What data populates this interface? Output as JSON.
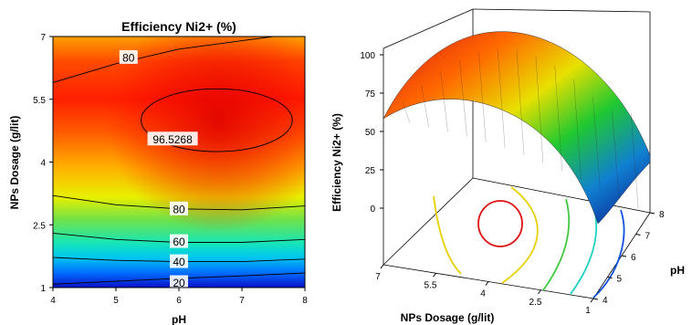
{
  "chart_data": [
    {
      "type": "contour",
      "title": "Efficiency Ni2+ (%)",
      "xlabel": "pH",
      "ylabel": "NPs Dosage (g/lit)",
      "xlim": [
        4,
        8
      ],
      "ylim": [
        1,
        7
      ],
      "x_ticks": [
        "4",
        "5",
        "6",
        "7",
        "8"
      ],
      "y_ticks": [
        "1",
        "2.5",
        "4",
        "5.5",
        "7"
      ],
      "colormap": [
        "#0a10c8",
        "#0090ff",
        "#19e6b4",
        "#6fe24a",
        "#e8f000",
        "#ffb000",
        "#ff5a00",
        "#e00000"
      ],
      "contour_levels": [
        20,
        40,
        60,
        80,
        80,
        96.5268
      ],
      "contour_labels": [
        "20",
        "40",
        "60",
        "80",
        "80",
        "96.5268"
      ],
      "optimum": {
        "pH": 6.6,
        "dosage": 5.0,
        "efficiency": 96.5268
      },
      "legend": "none",
      "grid": false
    },
    {
      "type": "surface3d",
      "zlabel": "Efficiency  Ni2+ (%)",
      "xlabel": "NPs Dosage (g/lit)",
      "ylabel": "pH",
      "z_ticks": [
        "0",
        "25",
        "50",
        "75",
        "100"
      ],
      "dosage_ticks": [
        "7",
        "5.5",
        "4",
        "2.5",
        "1"
      ],
      "ph_ticks": [
        "4",
        "5",
        "6",
        "7",
        "8"
      ],
      "zlim": [
        0,
        100
      ],
      "xlim": [
        1,
        7
      ],
      "ylim": [
        4,
        8
      ],
      "floor_contours": true,
      "legend": "none"
    }
  ]
}
